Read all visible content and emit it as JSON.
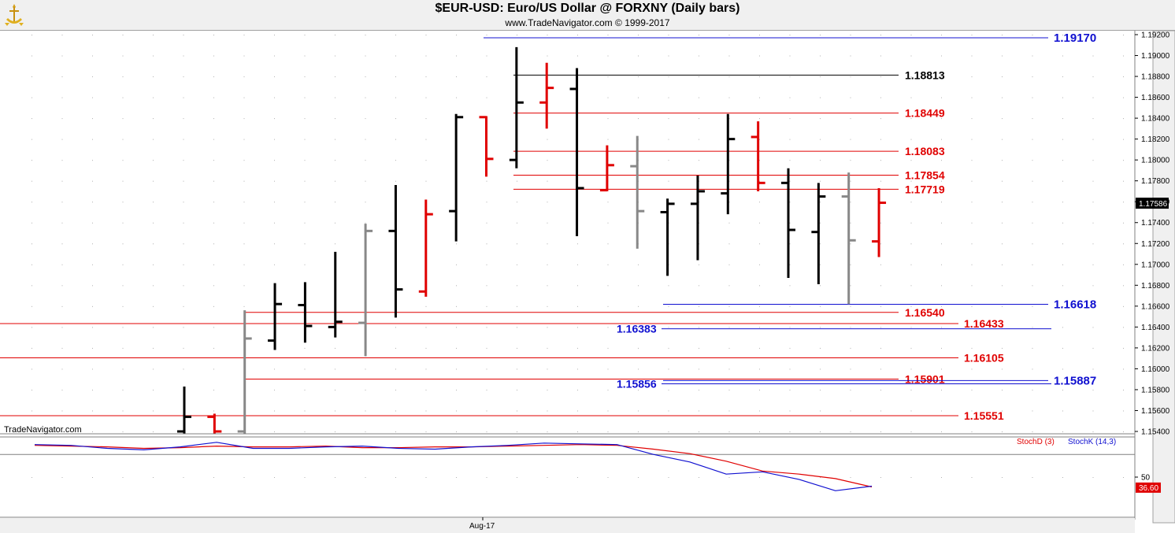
{
  "header": {
    "title": "$EUR-USD:  Euro/US Dollar @ FORXNY  (Daily bars)",
    "subtitle": "www.TradeNavigator.com © 1999-2017"
  },
  "watermark": "TradeNavigator.com",
  "colors": {
    "up": "#000000",
    "down": "#e00000",
    "neutral": "#888888",
    "resistance_blue": "#1010d0",
    "support_red": "#e00000",
    "stochD": "#e00000",
    "stochK": "#1010d0"
  },
  "chart_data": [
    {
      "type": "ohlc",
      "title": "$EUR-USD:  Euro/US Dollar @ FORXNY  (Daily bars)",
      "xlabel": "",
      "ylabel": "",
      "x_tick_label": "Aug-17",
      "ylim": [
        1.1532,
        1.1928
      ],
      "y_ticks": [
        "1.19200",
        "1.19000",
        "1.18800",
        "1.18600",
        "1.18400",
        "1.18200",
        "1.18000",
        "1.17800",
        "1.17600",
        "1.17400",
        "1.17200",
        "1.17000",
        "1.16800",
        "1.16600",
        "1.16400",
        "1.16200",
        "1.16000",
        "1.15800",
        "1.15600",
        "1.15400"
      ],
      "last_price": "1.17586",
      "bars": [
        {
          "o": 1.154,
          "h": 1.1583,
          "l": 1.153,
          "c": 1.1554,
          "color": "black"
        },
        {
          "o": 1.1554,
          "h": 1.1557,
          "l": 1.153,
          "c": 1.154,
          "color": "red"
        },
        {
          "o": 1.154,
          "h": 1.1656,
          "l": 1.153,
          "c": 1.1629,
          "color": "gray"
        },
        {
          "o": 1.1627,
          "h": 1.1682,
          "l": 1.1618,
          "c": 1.1662,
          "color": "black"
        },
        {
          "o": 1.1661,
          "h": 1.1683,
          "l": 1.1625,
          "c": 1.1641,
          "color": "black"
        },
        {
          "o": 1.164,
          "h": 1.1712,
          "l": 1.163,
          "c": 1.1645,
          "color": "black"
        },
        {
          "o": 1.1644,
          "h": 1.1739,
          "l": 1.1612,
          "c": 1.1732,
          "color": "gray"
        },
        {
          "o": 1.1732,
          "h": 1.1776,
          "l": 1.1649,
          "c": 1.1676,
          "color": "black"
        },
        {
          "o": 1.1674,
          "h": 1.1762,
          "l": 1.1669,
          "c": 1.1748,
          "color": "red"
        },
        {
          "o": 1.1751,
          "h": 1.1844,
          "l": 1.1722,
          "c": 1.1841,
          "color": "black"
        },
        {
          "o": 1.1841,
          "h": 1.1842,
          "l": 1.1784,
          "c": 1.1801,
          "color": "red"
        },
        {
          "o": 1.18,
          "h": 1.1908,
          "l": 1.1792,
          "c": 1.1855,
          "color": "black"
        },
        {
          "o": 1.1855,
          "h": 1.1893,
          "l": 1.183,
          "c": 1.1869,
          "color": "red"
        },
        {
          "o": 1.1868,
          "h": 1.1888,
          "l": 1.1727,
          "c": 1.1773,
          "color": "black"
        },
        {
          "o": 1.1771,
          "h": 1.1814,
          "l": 1.177,
          "c": 1.1795,
          "color": "red"
        },
        {
          "o": 1.1794,
          "h": 1.1823,
          "l": 1.1715,
          "c": 1.1751,
          "color": "gray"
        },
        {
          "o": 1.175,
          "h": 1.1763,
          "l": 1.1689,
          "c": 1.1758,
          "color": "black"
        },
        {
          "o": 1.1758,
          "h": 1.1785,
          "l": 1.1704,
          "c": 1.177,
          "color": "black"
        },
        {
          "o": 1.1768,
          "h": 1.1844,
          "l": 1.1748,
          "c": 1.182,
          "color": "black"
        },
        {
          "o": 1.1822,
          "h": 1.1837,
          "l": 1.177,
          "c": 1.1778,
          "color": "red"
        },
        {
          "o": 1.1778,
          "h": 1.1792,
          "l": 1.1687,
          "c": 1.1733,
          "color": "black"
        },
        {
          "o": 1.1731,
          "h": 1.1778,
          "l": 1.1681,
          "c": 1.1765,
          "color": "black"
        },
        {
          "o": 1.1765,
          "h": 1.1788,
          "l": 1.1662,
          "c": 1.1723,
          "color": "gray"
        },
        {
          "o": 1.1722,
          "h": 1.1773,
          "l": 1.1707,
          "c": 1.1759,
          "color": "red"
        }
      ],
      "levels": [
        {
          "value": 1.1917,
          "label": "1.19170",
          "color": "blue",
          "from_bar": 10,
          "label_pos": "right"
        },
        {
          "value": 1.18813,
          "label": "1.18813",
          "color": "black",
          "from_bar": 11,
          "label_pos": "mid"
        },
        {
          "value": 1.18449,
          "label": "1.18449",
          "color": "red",
          "from_bar": 11,
          "label_pos": "mid"
        },
        {
          "value": 1.18083,
          "label": "1.18083",
          "color": "red",
          "from_bar": 11,
          "label_pos": "mid"
        },
        {
          "value": 1.17854,
          "label": "1.17854",
          "color": "red",
          "from_bar": 11,
          "label_pos": "mid"
        },
        {
          "value": 1.17719,
          "label": "1.17719",
          "color": "red",
          "from_bar": 11,
          "label_pos": "mid"
        },
        {
          "value": 1.16618,
          "label": "1.16618",
          "color": "blue",
          "from_bar": 16,
          "label_pos": "right"
        },
        {
          "value": 1.1654,
          "label": "1.16540",
          "color": "red",
          "from_bar": 2,
          "label_pos": "mid"
        },
        {
          "value": 1.16433,
          "label": "1.16433",
          "color": "red",
          "from_bar": -1,
          "label_pos": "mid2"
        },
        {
          "value": 1.16383,
          "label": "1.16383",
          "color": "blue",
          "from_bar": 16,
          "label_pos": "left"
        },
        {
          "value": 1.16105,
          "label": "1.16105",
          "color": "red",
          "from_bar": -1,
          "label_pos": "mid2"
        },
        {
          "value": 1.15901,
          "label": "1.15901",
          "color": "red",
          "from_bar": 2,
          "label_pos": "mid"
        },
        {
          "value": 1.15887,
          "label": "1.15887",
          "color": "blue",
          "from_bar": 16,
          "label_pos": "right"
        },
        {
          "value": 1.15856,
          "label": "1.15856",
          "color": "blue",
          "from_bar": 16,
          "label_pos": "left"
        },
        {
          "value": 1.15551,
          "label": "1.15551",
          "color": "red",
          "from_bar": -1,
          "label_pos": "mid2"
        }
      ]
    },
    {
      "type": "line",
      "title": "",
      "legend": [
        "StochD (3)",
        "StochK (14,3)"
      ],
      "ylim": [
        0,
        100
      ],
      "y_ticks": [
        "50"
      ],
      "last_value": "36.60",
      "series": [
        {
          "name": "StochD (3)",
          "values": [
            92,
            91,
            90,
            88,
            89,
            91,
            90,
            90,
            91,
            89,
            89,
            90,
            90,
            91,
            92,
            93,
            92,
            87,
            81,
            71,
            58,
            54,
            48,
            37
          ]
        },
        {
          "name": "StochK (14,3)",
          "values": [
            93,
            92,
            88,
            86,
            90,
            96,
            88,
            88,
            90,
            91,
            88,
            87,
            90,
            92,
            95,
            94,
            93,
            80,
            70,
            54,
            57,
            47,
            32,
            38
          ]
        }
      ]
    }
  ]
}
